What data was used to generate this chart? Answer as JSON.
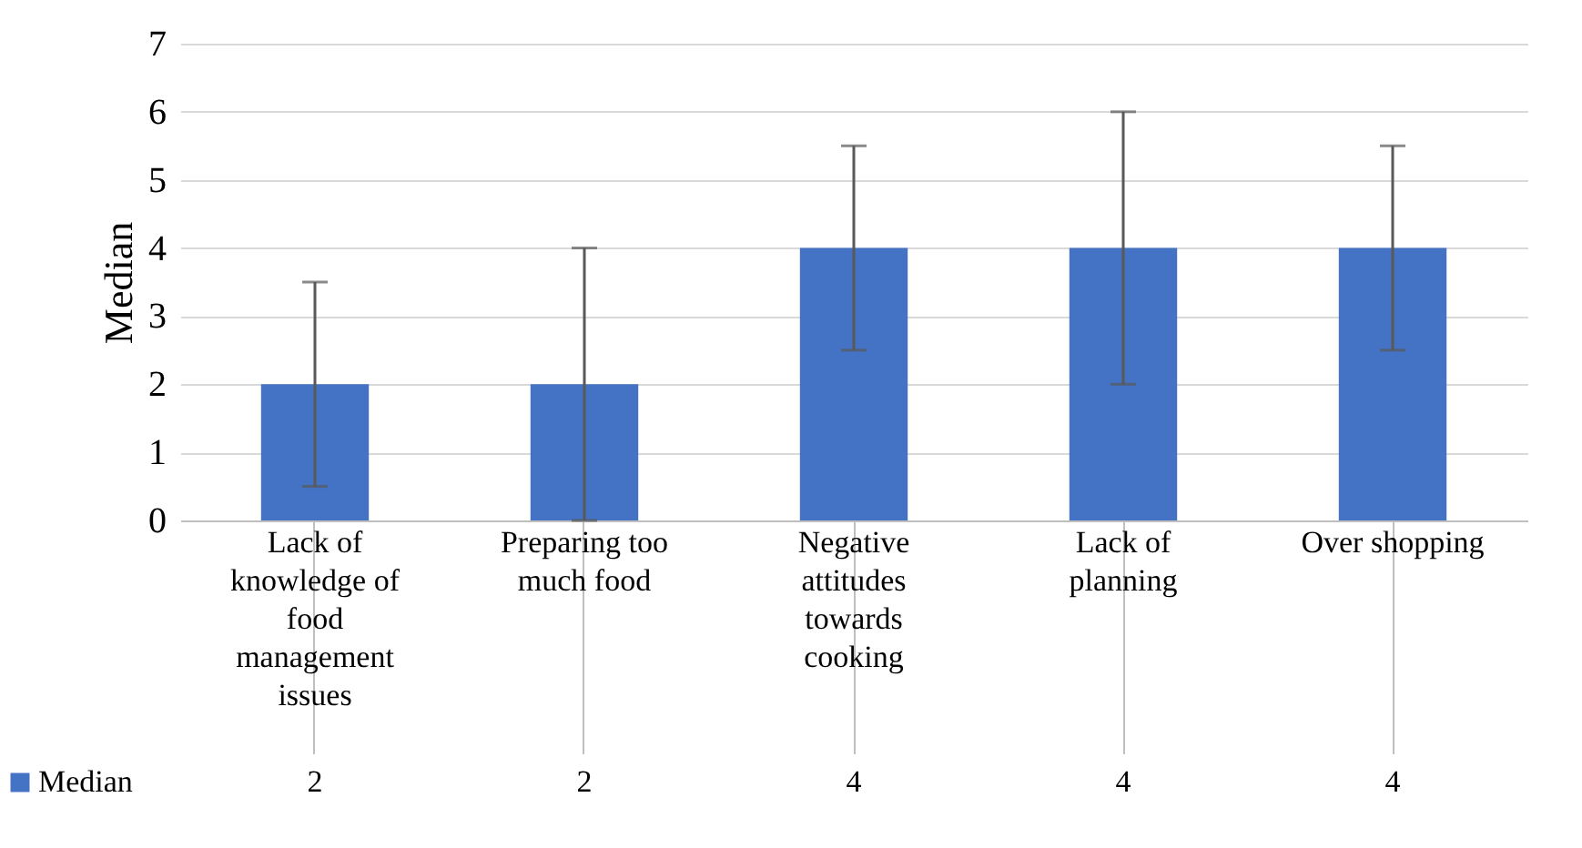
{
  "chart_data": {
    "type": "bar",
    "ylabel": "Median",
    "categories": [
      "Lack of knowledge of food management issues",
      "Preparing too much food",
      "Negative attitudes towards cooking",
      "Lack of planning",
      "Over shopping"
    ],
    "series": [
      {
        "name": "Median",
        "color": "#4472c4",
        "values": [
          2,
          2,
          4,
          4,
          4
        ],
        "errors": [
          [
            0.5,
            3.5
          ],
          [
            0,
            4
          ],
          [
            2.5,
            5.5
          ],
          [
            2,
            6
          ],
          [
            2.5,
            5.5
          ]
        ]
      }
    ],
    "ylim": [
      0,
      7
    ],
    "yticks": [
      0,
      1,
      2,
      3,
      4,
      5,
      6,
      7
    ],
    "grid": "y",
    "data_labels": true,
    "legend": "bottom"
  }
}
